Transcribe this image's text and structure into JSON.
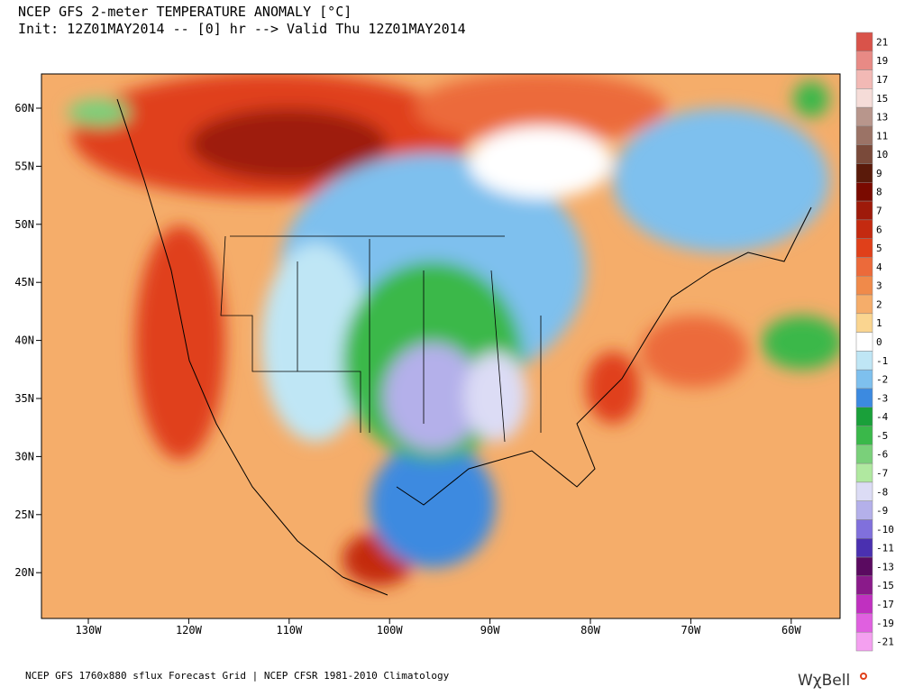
{
  "header": {
    "title": "NCEP GFS 2-meter TEMPERATURE ANOMALY [°C]",
    "subtitle": "Init: 12Z01MAY2014 -- [0] hr --> Valid Thu 12Z01MAY2014"
  },
  "map": {
    "lat_labels": [
      "60N",
      "55N",
      "50N",
      "45N",
      "40N",
      "35N",
      "30N",
      "25N",
      "20N"
    ],
    "lon_labels": [
      "130W",
      "120W",
      "110W",
      "100W",
      "90W",
      "80W",
      "70W",
      "60W"
    ]
  },
  "colorbar": {
    "labels": [
      "21",
      "19",
      "17",
      "15",
      "13",
      "11",
      "10",
      "9",
      "8",
      "7",
      "6",
      "5",
      "4",
      "3",
      "2",
      "1",
      "0",
      "-1",
      "-2",
      "-3",
      "-4",
      "-5",
      "-6",
      "-7",
      "-8",
      "-9",
      "-10",
      "-11",
      "-13",
      "-15",
      "-17",
      "-19",
      "-21"
    ],
    "colors": [
      "#d9534a",
      "#e88a85",
      "#f2b9b5",
      "#f5dcd8",
      "#b8968c",
      "#9b7366",
      "#7a4a3a",
      "#5a1a0a",
      "#7a0a00",
      "#9e1a0a",
      "#c42a10",
      "#e0401a",
      "#ec6a3a",
      "#f08a4a",
      "#f5ad6a",
      "#fad590",
      "#ffffff",
      "#bfe6f5",
      "#7ec0ee",
      "#3c8ae0",
      "#1aa03a",
      "#3ab84a",
      "#7ad07a",
      "#b0e8a0",
      "#dcdcf5",
      "#b4b0ea",
      "#8070dc",
      "#4a30b0",
      "#5a0a60",
      "#8a1a8a",
      "#c030c0",
      "#e060e0",
      "#f4a0f0"
    ]
  },
  "footer": {
    "text": "NCEP GFS 1760x880 sflux Forecast Grid | NCEP CFSR 1981-2010 Climatology",
    "logo": "WχBell"
  }
}
